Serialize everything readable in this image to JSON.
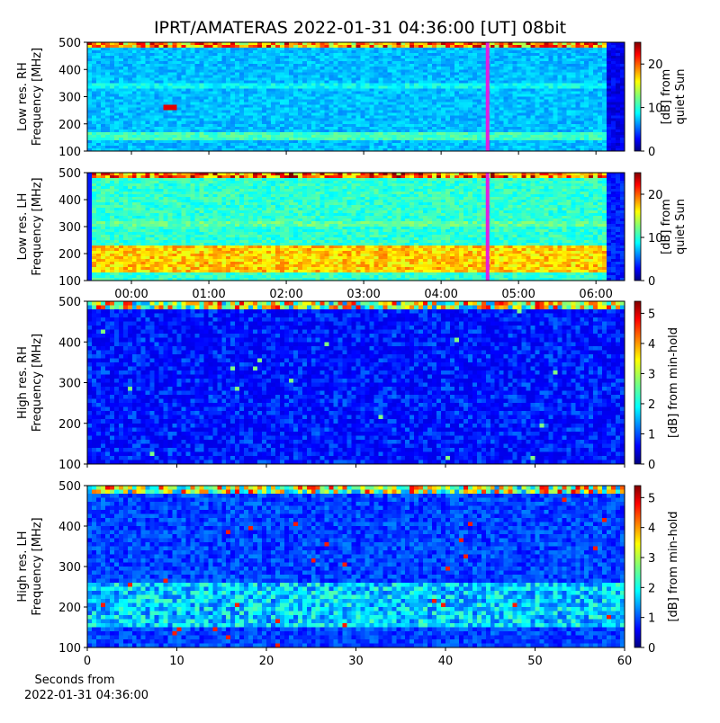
{
  "title": "IPRT/AMATERAS 2022-01-31 04:36:00 [UT]   08bit",
  "chart_data": [
    {
      "type": "spectrogram",
      "ylabel": [
        "Low res. RH",
        "Frequency [MHz]"
      ],
      "ylim": [
        100,
        500
      ],
      "yticks": [
        100,
        200,
        300,
        400,
        500
      ],
      "xlim": [
        -0.57,
        6.37
      ],
      "xticks": [
        0,
        1,
        2,
        3,
        4,
        5,
        6
      ],
      "xticklabels": false,
      "clim": [
        0,
        25
      ],
      "cticks": [
        0,
        10,
        20
      ],
      "clabel": [
        "[dB] from",
        "quiet Sun"
      ],
      "marker_x": 4.6,
      "marker_color": "#e020e0"
    },
    {
      "type": "spectrogram",
      "ylabel": [
        "Low res. LH",
        "Frequency [MHz]"
      ],
      "ylim": [
        100,
        500
      ],
      "yticks": [
        100,
        200,
        300,
        400,
        500
      ],
      "xlim": [
        -0.57,
        6.37
      ],
      "xticks": [
        {
          "value": 0,
          "label": "00:00"
        },
        {
          "value": 1,
          "label": "01:00"
        },
        {
          "value": 2,
          "label": "02:00"
        },
        {
          "value": 3,
          "label": "03:00"
        },
        {
          "value": 4,
          "label": "04:00"
        },
        {
          "value": 5,
          "label": "05:00"
        },
        {
          "value": 6,
          "label": "06:00"
        }
      ],
      "xticklabels": true,
      "clim": [
        0,
        25
      ],
      "cticks": [
        0,
        10,
        20
      ],
      "clabel": [
        "[dB] from",
        "quiet Sun"
      ],
      "marker_x": 4.6,
      "marker_color": "#e020e0"
    },
    {
      "type": "spectrogram",
      "ylabel": [
        "High res. RH",
        "Frequency [MHz]"
      ],
      "ylim": [
        100,
        500
      ],
      "yticks": [
        100,
        200,
        300,
        400,
        500
      ],
      "xlim": [
        0,
        60
      ],
      "xticks": [
        0,
        10,
        20,
        30,
        40,
        50,
        60
      ],
      "xticklabels": false,
      "clim": [
        0,
        5.4
      ],
      "cticks": [
        0,
        1,
        2,
        3,
        4,
        5
      ],
      "clabel": [
        "[dB] from min-hold"
      ]
    },
    {
      "type": "spectrogram",
      "ylabel": [
        "High res. LH",
        "Frequency [MHz]"
      ],
      "ylim": [
        100,
        500
      ],
      "yticks": [
        100,
        200,
        300,
        400,
        500
      ],
      "xlim": [
        0,
        60
      ],
      "xticks": [
        0,
        10,
        20,
        30,
        40,
        50,
        60
      ],
      "xticklabels": true,
      "clim": [
        0,
        5.4
      ],
      "cticks": [
        0,
        1,
        2,
        3,
        4,
        5
      ],
      "clabel": [
        "[dB] from min-hold"
      ],
      "xlabel": [
        "Seconds from",
        "2022-01-31 04:36:00"
      ]
    }
  ]
}
